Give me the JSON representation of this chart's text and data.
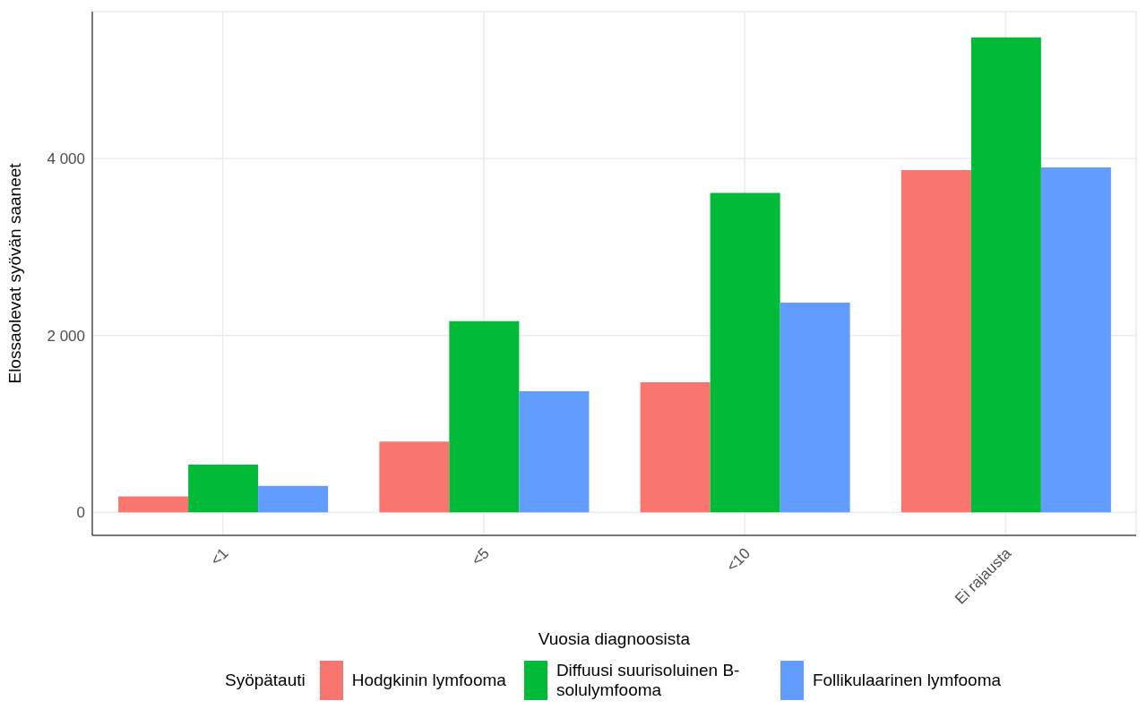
{
  "chart_data": {
    "type": "bar",
    "xlabel": "Vuosia diagnoosista",
    "ylabel": "Elossaolevat syövän saaneet",
    "legend_title": "Syöpätauti",
    "categories": [
      "<1",
      "<5",
      "<10",
      "Ei rajausta"
    ],
    "series": [
      {
        "name": "Hodgkinin lymfooma",
        "color": "#f8766d",
        "values": [
          180,
          800,
          1470,
          3870
        ]
      },
      {
        "name": "Diffuusi suurisoluinen B-solulymfooma",
        "color": "#00ba38",
        "values": [
          540,
          2160,
          3610,
          5370
        ]
      },
      {
        "name": "Follikulaarinen lymfooma",
        "color": "#619cff",
        "values": [
          300,
          1370,
          2370,
          3900
        ]
      }
    ],
    "ylim": [
      -260,
      5660
    ],
    "yticks": [
      {
        "value": 0,
        "label": "0"
      },
      {
        "value": 2000,
        "label": "2 000"
      },
      {
        "value": 4000,
        "label": "4 000"
      }
    ],
    "grid": true,
    "legend": "bottom"
  }
}
